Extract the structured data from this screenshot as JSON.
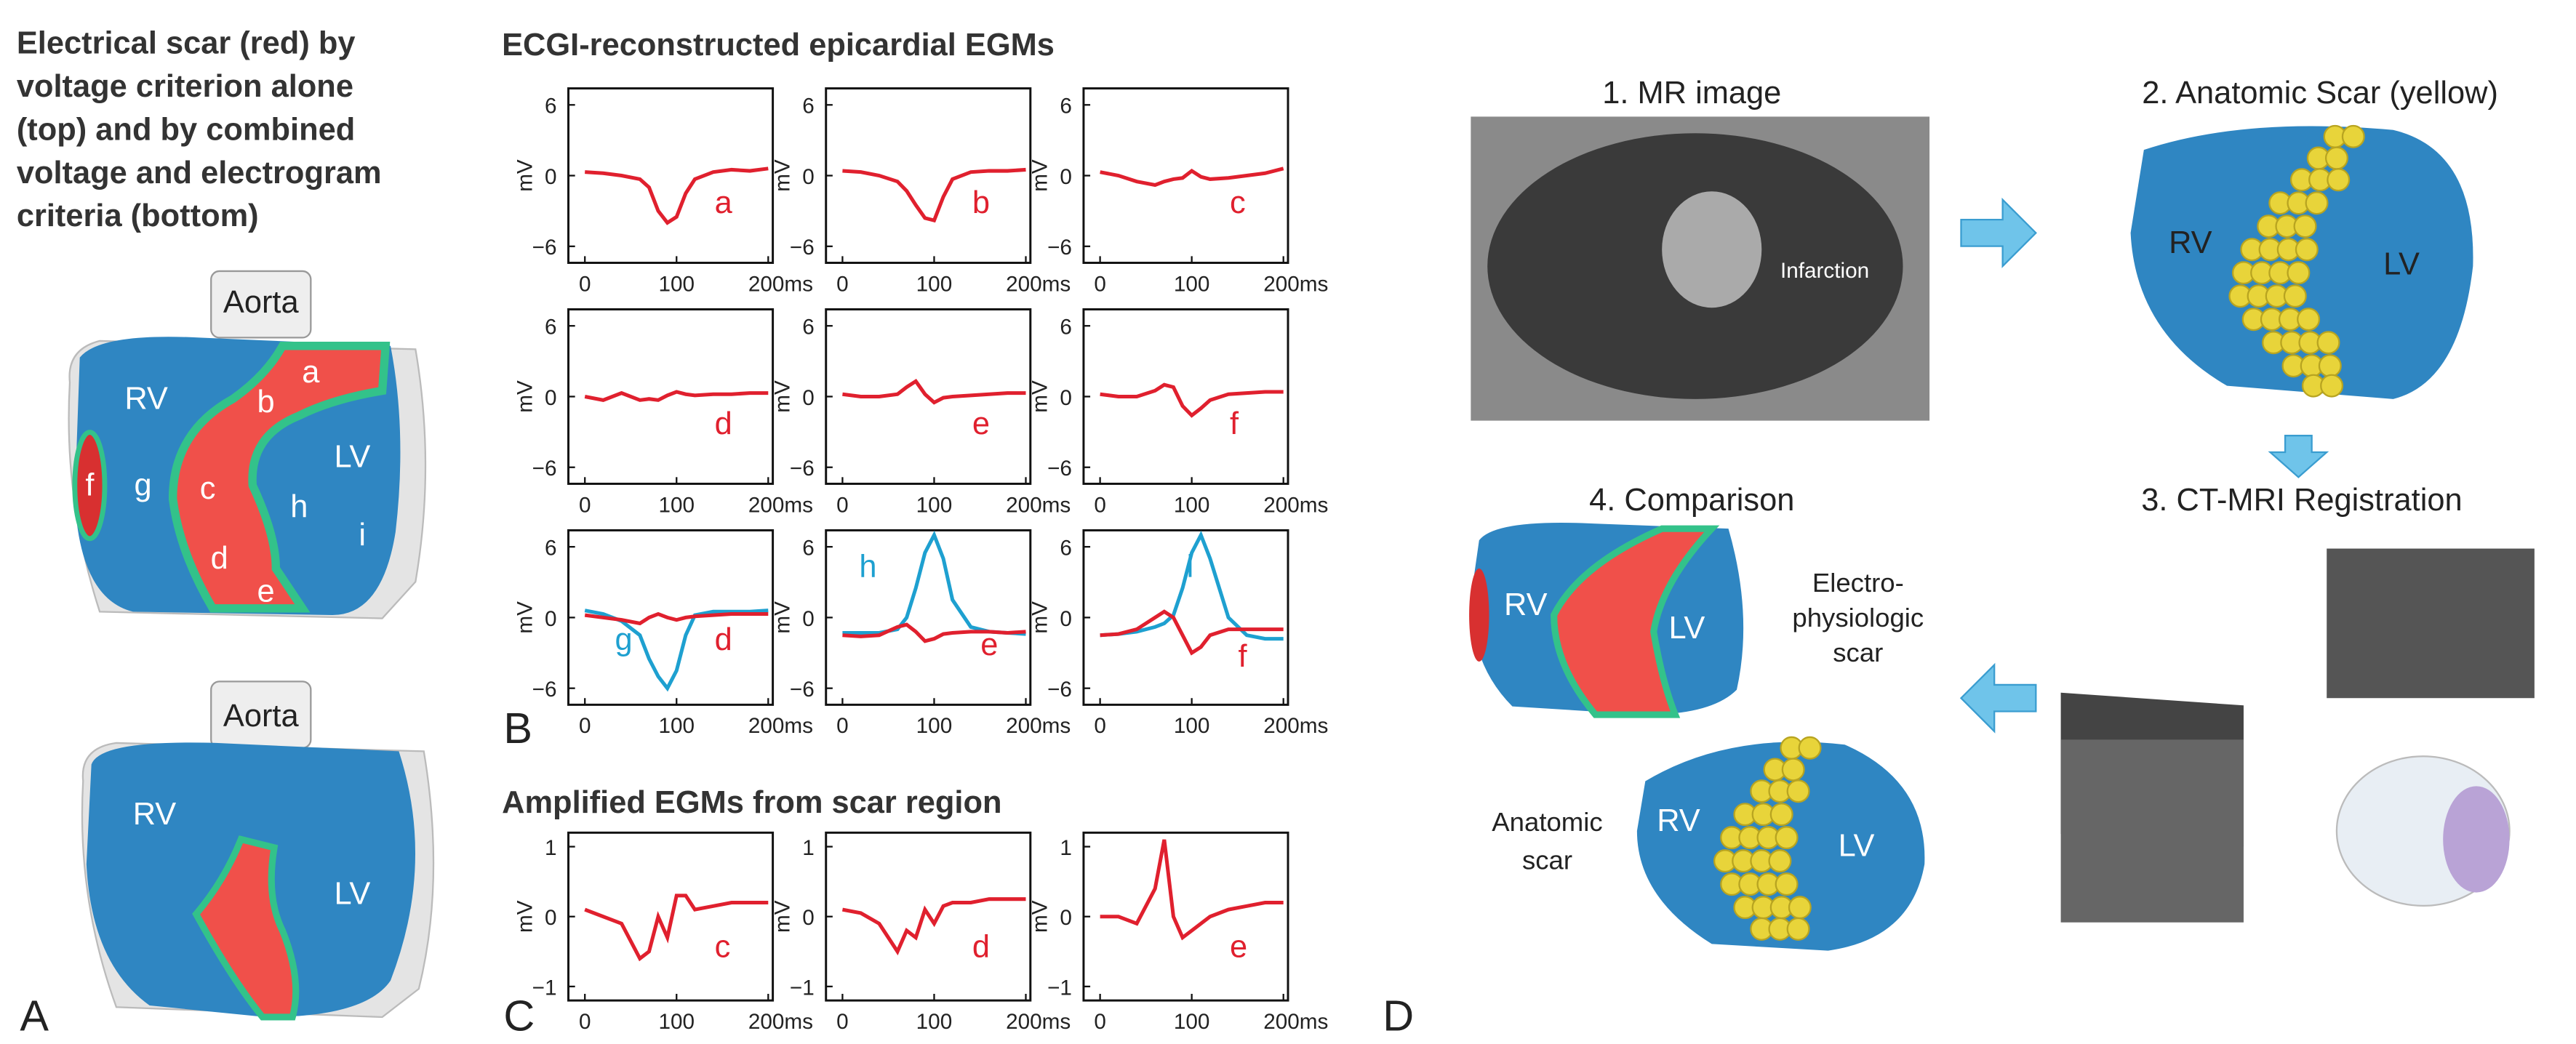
{
  "chart_data": [
    {
      "type": "line",
      "x": [
        0,
        20,
        40,
        60,
        70,
        80,
        90,
        100,
        110,
        120,
        140,
        160,
        180,
        200
      ],
      "xlim": [
        -18,
        205
      ],
      "xticks": [
        0,
        100,
        {
          "value": 200,
          "label": "200ms"
        }
      ],
      "ylim": [
        -7.4,
        7.4
      ],
      "yticks": [
        6,
        0,
        {
          "value": -6,
          "label": "−6"
        }
      ],
      "ylabel": "mV",
      "series": [
        {
          "name": "a",
          "color": "#e0202e",
          "values": [
            0.3,
            0.2,
            0,
            -0.3,
            -1,
            -3,
            -4,
            -3.5,
            -1.5,
            -0.3,
            0.3,
            0.5,
            0.4,
            0.6
          ]
        }
      ]
    },
    {
      "type": "line",
      "x": [
        0,
        20,
        40,
        60,
        70,
        80,
        90,
        100,
        110,
        120,
        140,
        160,
        180,
        200
      ],
      "xlim": [
        -18,
        205
      ],
      "xticks": [
        0,
        100,
        {
          "value": 200,
          "label": "200ms"
        }
      ],
      "ylim": [
        -7.4,
        7.4
      ],
      "yticks": [
        6,
        0,
        {
          "value": -6,
          "label": "−6"
        }
      ],
      "ylabel": "mV",
      "series": [
        {
          "name": "b",
          "color": "#e0202e",
          "values": [
            0.4,
            0.3,
            0,
            -0.5,
            -1.3,
            -2.5,
            -3.6,
            -3.8,
            -1.8,
            -0.3,
            0.3,
            0.4,
            0.4,
            0.5
          ]
        }
      ]
    },
    {
      "type": "line",
      "x": [
        0,
        20,
        40,
        60,
        70,
        80,
        90,
        100,
        110,
        120,
        140,
        160,
        180,
        200
      ],
      "xlim": [
        -18,
        205
      ],
      "xticks": [
        0,
        100,
        {
          "value": 200,
          "label": "200ms"
        }
      ],
      "ylim": [
        -7.4,
        7.4
      ],
      "yticks": [
        6,
        0,
        {
          "value": -6,
          "label": "−6"
        }
      ],
      "ylabel": "mV",
      "series": [
        {
          "name": "c",
          "color": "#e0202e",
          "values": [
            0.3,
            0,
            -0.5,
            -0.8,
            -0.5,
            -0.3,
            -0.2,
            0.4,
            -0.1,
            -0.3,
            -0.2,
            0,
            0.2,
            0.6
          ]
        }
      ]
    },
    {
      "type": "line",
      "x": [
        0,
        20,
        40,
        60,
        70,
        80,
        90,
        100,
        110,
        120,
        140,
        160,
        180,
        200
      ],
      "xlim": [
        -18,
        205
      ],
      "xticks": [
        0,
        100,
        {
          "value": 200,
          "label": "200ms"
        }
      ],
      "ylim": [
        -7.4,
        7.4
      ],
      "yticks": [
        6,
        0,
        {
          "value": -6,
          "label": "−6"
        }
      ],
      "ylabel": "mV",
      "series": [
        {
          "name": "d",
          "color": "#e0202e",
          "values": [
            0,
            -0.3,
            0.3,
            -0.3,
            -0.2,
            -0.3,
            0.1,
            0.4,
            0.2,
            0.1,
            0.2,
            0.2,
            0.3,
            0.3
          ]
        }
      ]
    },
    {
      "type": "line",
      "x": [
        0,
        20,
        40,
        60,
        70,
        80,
        90,
        100,
        110,
        120,
        140,
        160,
        180,
        200
      ],
      "xlim": [
        -18,
        205
      ],
      "xticks": [
        0,
        100,
        {
          "value": 200,
          "label": "200ms"
        }
      ],
      "ylim": [
        -7.4,
        7.4
      ],
      "yticks": [
        6,
        0,
        {
          "value": -6,
          "label": "−6"
        }
      ],
      "ylabel": "mV",
      "series": [
        {
          "name": "e",
          "color": "#e0202e",
          "values": [
            0.2,
            0,
            0,
            0.2,
            0.8,
            1.3,
            0.2,
            -0.5,
            -0.1,
            0,
            0.1,
            0.2,
            0.3,
            0.3
          ]
        }
      ]
    },
    {
      "type": "line",
      "x": [
        0,
        20,
        40,
        60,
        70,
        80,
        90,
        100,
        110,
        120,
        140,
        160,
        180,
        200
      ],
      "xlim": [
        -18,
        205
      ],
      "xticks": [
        0,
        100,
        {
          "value": 200,
          "label": "200ms"
        }
      ],
      "ylim": [
        -7.4,
        7.4
      ],
      "yticks": [
        6,
        0,
        {
          "value": -6,
          "label": "−6"
        }
      ],
      "ylabel": "mV",
      "series": [
        {
          "name": "f",
          "color": "#e0202e",
          "values": [
            0.2,
            0,
            0,
            0.5,
            1.0,
            0.8,
            -0.8,
            -1.6,
            -1.0,
            -0.3,
            0.2,
            0.3,
            0.4,
            0.4
          ]
        }
      ]
    },
    {
      "type": "line",
      "x": [
        0,
        20,
        40,
        60,
        70,
        80,
        90,
        100,
        110,
        120,
        140,
        160,
        180,
        200
      ],
      "xlim": [
        -18,
        205
      ],
      "xticks": [
        0,
        100,
        {
          "value": 200,
          "label": "200ms"
        }
      ],
      "ylim": [
        -7.4,
        7.4
      ],
      "yticks": [
        6,
        0,
        {
          "value": -6,
          "label": "−6"
        }
      ],
      "ylabel": "mV",
      "series": [
        {
          "name": "g",
          "color": "#1ea0d0",
          "values": [
            0.6,
            0.3,
            -0.3,
            -1.5,
            -3.5,
            -5,
            -6,
            -4.5,
            -1.5,
            0.2,
            0.5,
            0.5,
            0.5,
            0.6
          ]
        },
        {
          "name": "d",
          "color": "#e0202e",
          "values": [
            0.2,
            0,
            -0.2,
            -0.5,
            0,
            0.3,
            0,
            -0.2,
            0,
            0.1,
            0.2,
            0.3,
            0.3,
            0.3
          ]
        }
      ]
    },
    {
      "type": "line",
      "x": [
        0,
        20,
        40,
        60,
        70,
        80,
        90,
        100,
        110,
        120,
        140,
        160,
        180,
        200
      ],
      "xlim": [
        -18,
        205
      ],
      "xticks": [
        0,
        100,
        {
          "value": 200,
          "label": "200ms"
        }
      ],
      "ylim": [
        -7.4,
        7.4
      ],
      "yticks": [
        6,
        0,
        {
          "value": -6,
          "label": "−6"
        }
      ],
      "ylabel": "mV",
      "series": [
        {
          "name": "h",
          "color": "#1ea0d0",
          "values": [
            -1.3,
            -1.3,
            -1.3,
            -1,
            0,
            2.5,
            5.5,
            7,
            5,
            1.5,
            -0.8,
            -1.2,
            -1.3,
            -1.4
          ]
        },
        {
          "name": "e",
          "color": "#e0202e",
          "values": [
            -1.5,
            -1.6,
            -1.5,
            -0.8,
            -0.6,
            -1.2,
            -2.0,
            -1.8,
            -1.4,
            -1.3,
            -1.2,
            -1.2,
            -1.3,
            -1.2
          ]
        }
      ]
    },
    {
      "type": "line",
      "x": [
        0,
        20,
        40,
        60,
        70,
        80,
        90,
        100,
        110,
        120,
        140,
        160,
        180,
        200
      ],
      "xlim": [
        -18,
        205
      ],
      "xticks": [
        0,
        100,
        {
          "value": 200,
          "label": "200ms"
        }
      ],
      "ylim": [
        -7.4,
        7.4
      ],
      "yticks": [
        6,
        0,
        {
          "value": -6,
          "label": "−6"
        }
      ],
      "ylabel": "mV",
      "series": [
        {
          "name": "i",
          "color": "#1ea0d0",
          "values": [
            -1.5,
            -1.4,
            -1.2,
            -0.8,
            -0.5,
            0.2,
            2.5,
            5.5,
            7,
            5,
            0,
            -1.5,
            -1.8,
            -1.8
          ]
        },
        {
          "name": "f",
          "color": "#e0202e",
          "values": [
            -1.5,
            -1.4,
            -1,
            0,
            0.5,
            0,
            -1.5,
            -3,
            -2.5,
            -1.5,
            -1,
            -1,
            -1,
            -1
          ]
        }
      ]
    },
    {
      "type": "line",
      "x": [
        0,
        20,
        40,
        60,
        70,
        80,
        90,
        100,
        110,
        120,
        140,
        160,
        180,
        200
      ],
      "xlim": [
        -18,
        205
      ],
      "xticks": [
        0,
        100,
        {
          "value": 200,
          "label": "200ms"
        }
      ],
      "ylim": [
        -1.2,
        1.2
      ],
      "yticks": [
        1,
        0,
        {
          "value": -1,
          "label": "−1"
        }
      ],
      "ylabel": "mV",
      "series": [
        {
          "name": "c",
          "color": "#e0202e",
          "values": [
            0.1,
            0,
            -0.1,
            -0.6,
            -0.5,
            0,
            -0.3,
            0.3,
            0.3,
            0.1,
            0.15,
            0.2,
            0.2,
            0.2
          ]
        }
      ]
    },
    {
      "type": "line",
      "x": [
        0,
        20,
        40,
        60,
        70,
        80,
        90,
        100,
        110,
        120,
        140,
        160,
        180,
        200
      ],
      "xlim": [
        -18,
        205
      ],
      "xticks": [
        0,
        100,
        {
          "value": 200,
          "label": "200ms"
        }
      ],
      "ylim": [
        -1.2,
        1.2
      ],
      "yticks": [
        1,
        0,
        {
          "value": -1,
          "label": "−1"
        }
      ],
      "ylabel": "mV",
      "series": [
        {
          "name": "d",
          "color": "#e0202e",
          "values": [
            0.1,
            0.05,
            -0.1,
            -0.5,
            -0.2,
            -0.3,
            0.1,
            -0.1,
            0.15,
            0.2,
            0.2,
            0.25,
            0.25,
            0.25
          ]
        }
      ]
    },
    {
      "type": "line",
      "x": [
        0,
        20,
        40,
        60,
        70,
        80,
        90,
        100,
        110,
        120,
        140,
        160,
        180,
        200
      ],
      "xlim": [
        -18,
        205
      ],
      "xticks": [
        0,
        100,
        {
          "value": 200,
          "label": "200ms"
        }
      ],
      "ylim": [
        -1.2,
        1.2
      ],
      "yticks": [
        1,
        0,
        {
          "value": -1,
          "label": "−1"
        }
      ],
      "ylabel": "mV",
      "series": [
        {
          "name": "e",
          "color": "#e0202e",
          "values": [
            0,
            0,
            -0.1,
            0.4,
            1.1,
            0,
            -0.3,
            -0.2,
            -0.1,
            0,
            0.1,
            0.15,
            0.2,
            0.2
          ]
        }
      ]
    }
  ],
  "panel_a": {
    "label": "A",
    "title": [
      "Electrical scar (red) by",
      "voltage criterion alone",
      "(top) and by combined",
      "voltage and electrogram",
      "criteria (bottom)"
    ],
    "top_heart": {
      "aorta": "Aorta",
      "rv": "RV",
      "lv": "LV",
      "sites": [
        "a",
        "b",
        "c",
        "d",
        "e",
        "f",
        "g",
        "h",
        "i"
      ]
    },
    "bottom_heart": {
      "aorta": "Aorta",
      "rv": "RV",
      "lv": "LV"
    }
  },
  "panel_b": {
    "label": "B",
    "title": "ECGI-reconstructed epicardial EGMs"
  },
  "panel_c": {
    "label": "C",
    "title": "Amplified EGMs from scar region"
  },
  "panel_d": {
    "label": "D",
    "step1": "1. MR image",
    "infarction": "Infarction",
    "step2": "2. Anatomic Scar (yellow)",
    "step2_rv": "RV",
    "step2_lv": "LV",
    "step3": "3. CT-MRI Registration",
    "step4": "4. Comparison",
    "ep_rv": "RV",
    "ep_lv": "LV",
    "ep_scar": [
      "Electro-",
      "physiologic",
      "scar"
    ],
    "anat_rv": "RV",
    "anat_lv": "LV",
    "anat_scar": [
      "Anatomic",
      "scar"
    ]
  }
}
